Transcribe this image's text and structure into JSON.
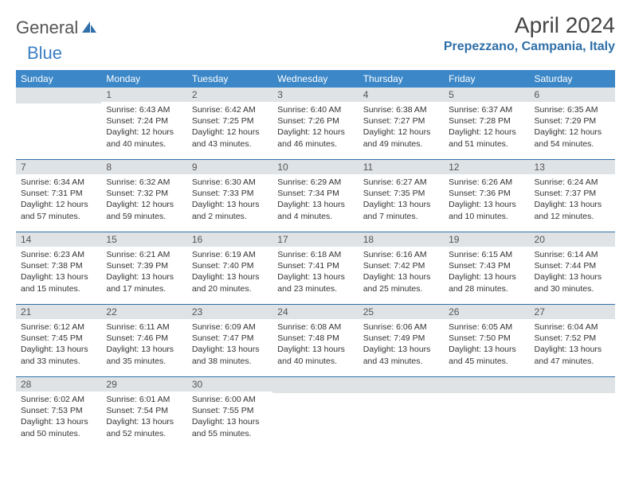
{
  "logo": {
    "text1": "General",
    "text2": "Blue"
  },
  "title": "April 2024",
  "location": "Prepezzano, Campania, Italy",
  "colors": {
    "header_bg": "#3b87c8",
    "header_fg": "#ffffff",
    "daynum_bg": "#dfe3e6",
    "row_border": "#2f6fa8",
    "location_color": "#2f6fa8",
    "title_color": "#444444",
    "body_text": "#333333"
  },
  "weekdays": [
    "Sunday",
    "Monday",
    "Tuesday",
    "Wednesday",
    "Thursday",
    "Friday",
    "Saturday"
  ],
  "weeks": [
    [
      {
        "n": "",
        "lines": []
      },
      {
        "n": "1",
        "lines": [
          "Sunrise: 6:43 AM",
          "Sunset: 7:24 PM",
          "Daylight: 12 hours and 40 minutes."
        ]
      },
      {
        "n": "2",
        "lines": [
          "Sunrise: 6:42 AM",
          "Sunset: 7:25 PM",
          "Daylight: 12 hours and 43 minutes."
        ]
      },
      {
        "n": "3",
        "lines": [
          "Sunrise: 6:40 AM",
          "Sunset: 7:26 PM",
          "Daylight: 12 hours and 46 minutes."
        ]
      },
      {
        "n": "4",
        "lines": [
          "Sunrise: 6:38 AM",
          "Sunset: 7:27 PM",
          "Daylight: 12 hours and 49 minutes."
        ]
      },
      {
        "n": "5",
        "lines": [
          "Sunrise: 6:37 AM",
          "Sunset: 7:28 PM",
          "Daylight: 12 hours and 51 minutes."
        ]
      },
      {
        "n": "6",
        "lines": [
          "Sunrise: 6:35 AM",
          "Sunset: 7:29 PM",
          "Daylight: 12 hours and 54 minutes."
        ]
      }
    ],
    [
      {
        "n": "7",
        "lines": [
          "Sunrise: 6:34 AM",
          "Sunset: 7:31 PM",
          "Daylight: 12 hours and 57 minutes."
        ]
      },
      {
        "n": "8",
        "lines": [
          "Sunrise: 6:32 AM",
          "Sunset: 7:32 PM",
          "Daylight: 12 hours and 59 minutes."
        ]
      },
      {
        "n": "9",
        "lines": [
          "Sunrise: 6:30 AM",
          "Sunset: 7:33 PM",
          "Daylight: 13 hours and 2 minutes."
        ]
      },
      {
        "n": "10",
        "lines": [
          "Sunrise: 6:29 AM",
          "Sunset: 7:34 PM",
          "Daylight: 13 hours and 4 minutes."
        ]
      },
      {
        "n": "11",
        "lines": [
          "Sunrise: 6:27 AM",
          "Sunset: 7:35 PM",
          "Daylight: 13 hours and 7 minutes."
        ]
      },
      {
        "n": "12",
        "lines": [
          "Sunrise: 6:26 AM",
          "Sunset: 7:36 PM",
          "Daylight: 13 hours and 10 minutes."
        ]
      },
      {
        "n": "13",
        "lines": [
          "Sunrise: 6:24 AM",
          "Sunset: 7:37 PM",
          "Daylight: 13 hours and 12 minutes."
        ]
      }
    ],
    [
      {
        "n": "14",
        "lines": [
          "Sunrise: 6:23 AM",
          "Sunset: 7:38 PM",
          "Daylight: 13 hours and 15 minutes."
        ]
      },
      {
        "n": "15",
        "lines": [
          "Sunrise: 6:21 AM",
          "Sunset: 7:39 PM",
          "Daylight: 13 hours and 17 minutes."
        ]
      },
      {
        "n": "16",
        "lines": [
          "Sunrise: 6:19 AM",
          "Sunset: 7:40 PM",
          "Daylight: 13 hours and 20 minutes."
        ]
      },
      {
        "n": "17",
        "lines": [
          "Sunrise: 6:18 AM",
          "Sunset: 7:41 PM",
          "Daylight: 13 hours and 23 minutes."
        ]
      },
      {
        "n": "18",
        "lines": [
          "Sunrise: 6:16 AM",
          "Sunset: 7:42 PM",
          "Daylight: 13 hours and 25 minutes."
        ]
      },
      {
        "n": "19",
        "lines": [
          "Sunrise: 6:15 AM",
          "Sunset: 7:43 PM",
          "Daylight: 13 hours and 28 minutes."
        ]
      },
      {
        "n": "20",
        "lines": [
          "Sunrise: 6:14 AM",
          "Sunset: 7:44 PM",
          "Daylight: 13 hours and 30 minutes."
        ]
      }
    ],
    [
      {
        "n": "21",
        "lines": [
          "Sunrise: 6:12 AM",
          "Sunset: 7:45 PM",
          "Daylight: 13 hours and 33 minutes."
        ]
      },
      {
        "n": "22",
        "lines": [
          "Sunrise: 6:11 AM",
          "Sunset: 7:46 PM",
          "Daylight: 13 hours and 35 minutes."
        ]
      },
      {
        "n": "23",
        "lines": [
          "Sunrise: 6:09 AM",
          "Sunset: 7:47 PM",
          "Daylight: 13 hours and 38 minutes."
        ]
      },
      {
        "n": "24",
        "lines": [
          "Sunrise: 6:08 AM",
          "Sunset: 7:48 PM",
          "Daylight: 13 hours and 40 minutes."
        ]
      },
      {
        "n": "25",
        "lines": [
          "Sunrise: 6:06 AM",
          "Sunset: 7:49 PM",
          "Daylight: 13 hours and 43 minutes."
        ]
      },
      {
        "n": "26",
        "lines": [
          "Sunrise: 6:05 AM",
          "Sunset: 7:50 PM",
          "Daylight: 13 hours and 45 minutes."
        ]
      },
      {
        "n": "27",
        "lines": [
          "Sunrise: 6:04 AM",
          "Sunset: 7:52 PM",
          "Daylight: 13 hours and 47 minutes."
        ]
      }
    ],
    [
      {
        "n": "28",
        "lines": [
          "Sunrise: 6:02 AM",
          "Sunset: 7:53 PM",
          "Daylight: 13 hours and 50 minutes."
        ]
      },
      {
        "n": "29",
        "lines": [
          "Sunrise: 6:01 AM",
          "Sunset: 7:54 PM",
          "Daylight: 13 hours and 52 minutes."
        ]
      },
      {
        "n": "30",
        "lines": [
          "Sunrise: 6:00 AM",
          "Sunset: 7:55 PM",
          "Daylight: 13 hours and 55 minutes."
        ]
      },
      {
        "n": "",
        "lines": []
      },
      {
        "n": "",
        "lines": []
      },
      {
        "n": "",
        "lines": []
      },
      {
        "n": "",
        "lines": []
      }
    ]
  ]
}
